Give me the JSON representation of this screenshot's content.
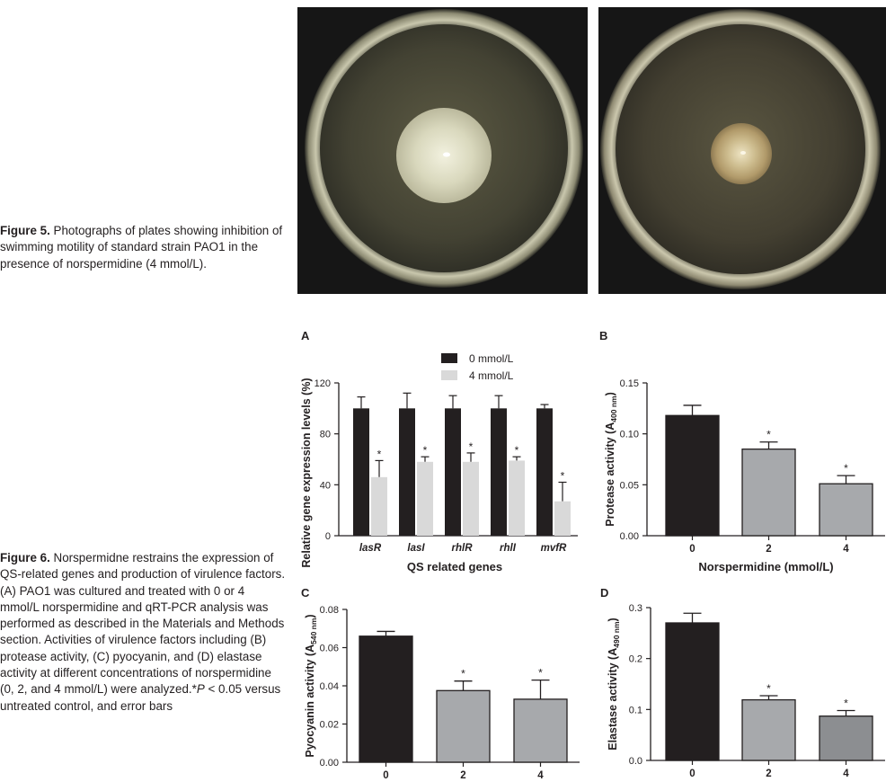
{
  "figure5": {
    "label": "Figure 5.",
    "text": " Photographs of plates showing inhibition of swimming motility of standard strain PAO1 in the presence of norspermidine (4 mmol/L)."
  },
  "figure6": {
    "label": "Figure 6.",
    "text_before": " Norspermidne restrains the expression of QS-related genes and production of virulence factors. (A) PAO1 was cultured and treated with 0 or 4 mmol/L norspermidine and qRT-PCR analysis was performed as described in the Materials and Methods section. Activities of virulence factors including (B) protease activity, (C) pyocyanin, and (D) elastase activity at different concentrations of norspermidine (0, 2, and 4 mmol/L) were analyzed.*",
    "p_symbol": "P",
    "text_after": " < 0.05 versus untreated control, and error bars"
  },
  "colors": {
    "dark_bar": "#231f20",
    "light_bar": "#d9d9d9",
    "grey_bar": "#a7a9ac",
    "grey_bar_d": "#8c8e91"
  },
  "chart_data": [
    {
      "panel": "A",
      "type": "bar",
      "categories": [
        "lasR",
        "lasI",
        "rhlR",
        "rhlI",
        "mvfR"
      ],
      "series": [
        {
          "name": "0 mmol/L",
          "values": [
            100,
            100,
            100,
            100,
            100
          ],
          "errors": [
            9,
            12,
            10,
            10,
            3
          ],
          "color": "#231f20"
        },
        {
          "name": "4 mmol/L",
          "values": [
            46,
            58,
            58,
            59,
            27
          ],
          "errors": [
            13,
            4,
            7,
            3,
            15
          ],
          "color": "#d9d9d9"
        }
      ],
      "significance": [
        "*",
        "*",
        "*",
        "*",
        "*"
      ],
      "ylabel": "Relative gene expression levels (%)",
      "xlabel": "QS related genes",
      "ylim": [
        0,
        120
      ],
      "yticks": [
        "0",
        "40",
        "80",
        "120"
      ],
      "legend": "top-right"
    },
    {
      "panel": "B",
      "type": "bar",
      "categories": [
        "0",
        "2",
        "4"
      ],
      "values": [
        0.118,
        0.085,
        0.051
      ],
      "errors": [
        0.01,
        0.007,
        0.008
      ],
      "significance": [
        "",
        "*",
        "*"
      ],
      "ylabel_main": "Protease activity (A",
      "ylabel_sub": "400 nm",
      "ylabel_end": ")",
      "xlabel": "Norspermidine (mmol/L)",
      "ylim": [
        0,
        0.15
      ],
      "yticks": [
        "0.00",
        "0.05",
        "0.10",
        "0.15"
      ]
    },
    {
      "panel": "C",
      "type": "bar",
      "categories": [
        "0",
        "2",
        "4"
      ],
      "values": [
        0.066,
        0.0375,
        0.033
      ],
      "errors": [
        0.0025,
        0.005,
        0.01
      ],
      "significance": [
        "",
        "*",
        "*"
      ],
      "ylabel_main": "Pyocyanin activity (A",
      "ylabel_sub": "540 nm",
      "ylabel_end": ")",
      "xlabel": "",
      "ylim": [
        0,
        0.08
      ],
      "yticks": [
        "0.00",
        "0.02",
        "0.04",
        "0.06",
        "0.08"
      ]
    },
    {
      "panel": "D",
      "type": "bar",
      "categories": [
        "0",
        "2",
        "4"
      ],
      "values": [
        0.27,
        0.119,
        0.087
      ],
      "errors": [
        0.019,
        0.008,
        0.011
      ],
      "significance": [
        "",
        "*",
        "*"
      ],
      "ylabel_main": "Elastase activity (A",
      "ylabel_sub": "490 nm",
      "ylabel_end": ")",
      "xlabel": "",
      "ylim": [
        0,
        0.3
      ],
      "yticks": [
        "0.0",
        "0.1",
        "0.2",
        "0.3"
      ]
    }
  ]
}
